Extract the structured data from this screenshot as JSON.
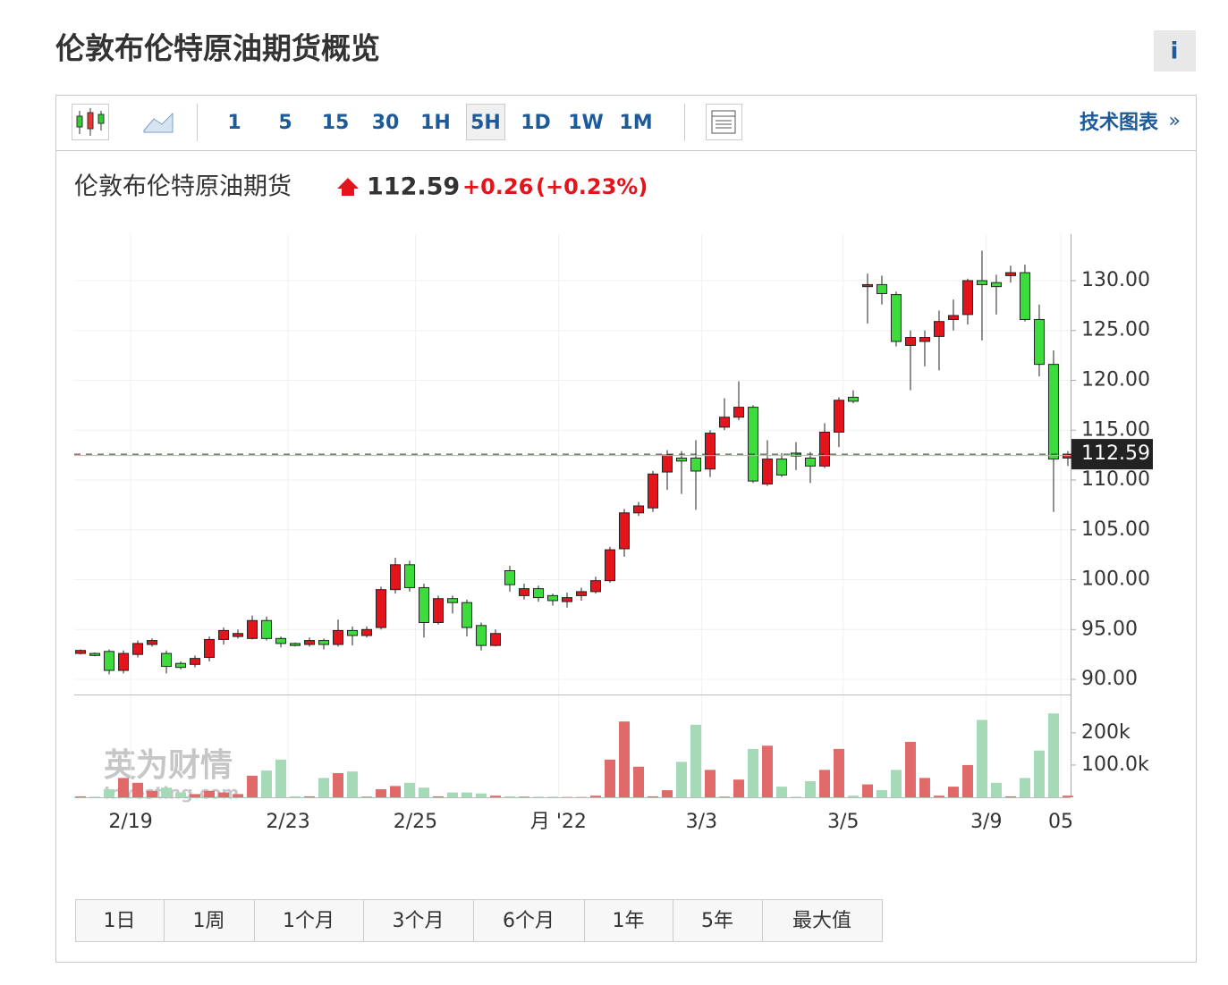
{
  "title": "伦敦布伦特原油期货概览",
  "info": "i",
  "toolbar": {
    "intervals": [
      "1",
      "5",
      "15",
      "30",
      "1H",
      "5H",
      "1D",
      "1W",
      "1M"
    ],
    "active": "5H",
    "tech_chart": "技术图表",
    "tech_chart_arrow": "»"
  },
  "quote": {
    "name": "伦敦布伦特原油期货",
    "change": "+0.26",
    "change_pct": "(+0.23%)"
  },
  "chart_data": {
    "type": "candlestick",
    "last": 112.59,
    "up_color": "#e3141b",
    "down_color": "#3ddc3d",
    "up_volume_color": "#e06a6a",
    "down_volume_color": "#a6d9b7",
    "grid": true,
    "x": [
      0,
      1,
      2,
      3,
      4,
      5,
      6,
      7,
      8,
      9,
      10,
      11,
      12,
      13,
      14,
      15,
      16,
      17,
      18,
      19,
      20,
      21,
      22,
      23,
      24,
      25,
      26,
      27,
      28,
      29,
      30,
      31,
      32,
      33,
      34,
      35,
      36,
      37,
      38,
      39,
      40,
      41,
      42,
      43,
      44,
      45,
      46,
      47,
      48,
      49,
      50,
      51,
      52,
      53,
      54,
      55,
      56,
      57,
      58,
      59,
      60,
      61,
      62,
      63,
      64,
      65,
      66,
      67,
      68,
      69
    ],
    "open": [
      92.6,
      92.6,
      92.8,
      90.9,
      92.5,
      93.5,
      92.6,
      91.6,
      91.5,
      92.2,
      94.0,
      94.3,
      94.1,
      95.9,
      94.1,
      93.6,
      93.5,
      93.9,
      93.5,
      94.9,
      94.4,
      95.2,
      99.0,
      101.5,
      99.2,
      95.7,
      98.1,
      97.7,
      95.4,
      93.4,
      100.9,
      98.4,
      99.1,
      98.4,
      97.8,
      98.4,
      98.8,
      99.9,
      103.1,
      106.7,
      107.2,
      110.8,
      112.2,
      112.2,
      111.1,
      115.3,
      116.3,
      117.3,
      109.6,
      112.1,
      112.7,
      112.2,
      111.4,
      114.8,
      118.3,
      129.4,
      129.6,
      128.6,
      123.5,
      123.9,
      124.4,
      126.1,
      126.6,
      130.0,
      129.8,
      130.5,
      130.8,
      126.1,
      121.6,
      112.2
    ],
    "high": [
      93.0,
      92.7,
      93.0,
      92.9,
      93.9,
      94.1,
      92.9,
      91.8,
      92.4,
      94.3,
      95.2,
      95.0,
      96.4,
      96.3,
      94.3,
      93.7,
      94.2,
      94.1,
      96.0,
      95.3,
      95.3,
      99.3,
      102.2,
      101.9,
      99.6,
      98.4,
      98.4,
      98.0,
      95.7,
      95.0,
      101.4,
      99.6,
      99.4,
      98.6,
      98.7,
      99.2,
      100.3,
      103.3,
      107.1,
      107.8,
      110.9,
      113.0,
      112.9,
      114.0,
      115.0,
      118.2,
      119.9,
      117.5,
      114.0,
      112.7,
      113.8,
      112.8,
      115.7,
      118.3,
      119.0,
      130.7,
      130.5,
      128.9,
      125.0,
      125.0,
      127.0,
      128.1,
      130.2,
      133.0,
      130.6,
      131.5,
      131.6,
      127.6,
      123.0,
      112.9
    ],
    "low": [
      92.5,
      92.3,
      90.5,
      90.6,
      92.2,
      93.3,
      90.6,
      91.0,
      91.2,
      91.8,
      93.5,
      94.1,
      94.0,
      93.9,
      93.2,
      93.3,
      93.3,
      93.0,
      93.3,
      93.4,
      94.2,
      95.0,
      98.6,
      98.8,
      94.2,
      95.5,
      96.6,
      94.3,
      92.9,
      93.3,
      98.8,
      98.0,
      97.8,
      97.4,
      97.2,
      97.9,
      98.6,
      99.7,
      102.3,
      106.4,
      106.8,
      109.0,
      108.6,
      107.0,
      110.3,
      115.0,
      116.0,
      109.7,
      109.4,
      110.3,
      111.0,
      109.7,
      111.2,
      113.3,
      117.7,
      125.7,
      127.6,
      123.4,
      119.0,
      121.4,
      121.0,
      125.0,
      125.6,
      124.0,
      126.6,
      129.8,
      125.9,
      120.4,
      106.8,
      111.4
    ],
    "close": [
      92.9,
      92.4,
      90.9,
      92.6,
      93.6,
      93.9,
      91.3,
      91.2,
      92.1,
      94.0,
      94.9,
      94.6,
      95.9,
      94.1,
      93.6,
      93.4,
      93.9,
      93.5,
      94.9,
      94.4,
      95.0,
      99.0,
      101.5,
      99.2,
      95.7,
      98.1,
      97.7,
      95.2,
      93.4,
      94.6,
      99.5,
      99.1,
      98.2,
      97.9,
      98.2,
      98.8,
      99.9,
      103.0,
      106.7,
      107.4,
      110.6,
      112.5,
      111.9,
      110.9,
      114.7,
      116.3,
      117.3,
      109.9,
      112.1,
      110.5,
      112.4,
      111.4,
      114.8,
      118.0,
      117.9,
      129.6,
      128.7,
      123.9,
      124.3,
      124.3,
      125.9,
      126.5,
      130.0,
      129.6,
      129.4,
      130.8,
      126.1,
      121.6,
      112.1,
      112.59
    ],
    "volume": [
      3000,
      2000,
      25000,
      60000,
      45000,
      20000,
      30000,
      15000,
      10000,
      20000,
      15000,
      10000,
      67000,
      83000,
      117000,
      3000,
      3000,
      60000,
      75000,
      80000,
      2000,
      25000,
      35000,
      45000,
      30000,
      3000,
      15000,
      15000,
      12000,
      5000,
      3000,
      2000,
      2000,
      2000,
      1000,
      1000,
      5000,
      117000,
      235000,
      95000,
      3000,
      22000,
      110000,
      225000,
      85000,
      2000,
      55000,
      150000,
      160000,
      33000,
      2000,
      50000,
      85000,
      150000,
      5000,
      40000,
      22000,
      85000,
      172000,
      60000,
      5000,
      33000,
      100000,
      240000,
      45000,
      3000,
      60000,
      145000,
      260000,
      5000
    ],
    "xlim": [
      -0.44,
      69.19
    ],
    "xticks": [
      {
        "value": 3.5,
        "label": "2/19"
      },
      {
        "value": 14.5,
        "label": "2/23"
      },
      {
        "value": 23.4,
        "label": "2/25"
      },
      {
        "value": 33.4,
        "label": "月 '22"
      },
      {
        "value": 43.4,
        "label": "3/3"
      },
      {
        "value": 53.3,
        "label": "3/5"
      },
      {
        "value": 63.3,
        "label": "3/9"
      },
      {
        "value": 68.5,
        "label": "05"
      }
    ],
    "ylim": [
      88.57,
      134.66
    ],
    "yticks": [
      {
        "value": 90,
        "label": "90.00"
      },
      {
        "value": 95,
        "label": "95.00"
      },
      {
        "value": 100,
        "label": "100.00"
      },
      {
        "value": 105,
        "label": "105.00"
      },
      {
        "value": 110,
        "label": "110.00"
      },
      {
        "value": 115,
        "label": "115.00"
      },
      {
        "value": 120,
        "label": "120.00"
      },
      {
        "value": 125,
        "label": "125.00"
      },
      {
        "value": 130,
        "label": "130.00"
      }
    ],
    "vlim": [
      0,
      316000
    ],
    "vticks": [
      {
        "value": 100000,
        "label": "100.0k"
      },
      {
        "value": 200000,
        "label": "200k"
      }
    ]
  },
  "ranges": [
    "1日",
    "1周",
    "1个月",
    "3个月",
    "6个月",
    "1年",
    "5年",
    "最大值"
  ],
  "watermark": [
    "英为财情",
    "Investing.com"
  ]
}
